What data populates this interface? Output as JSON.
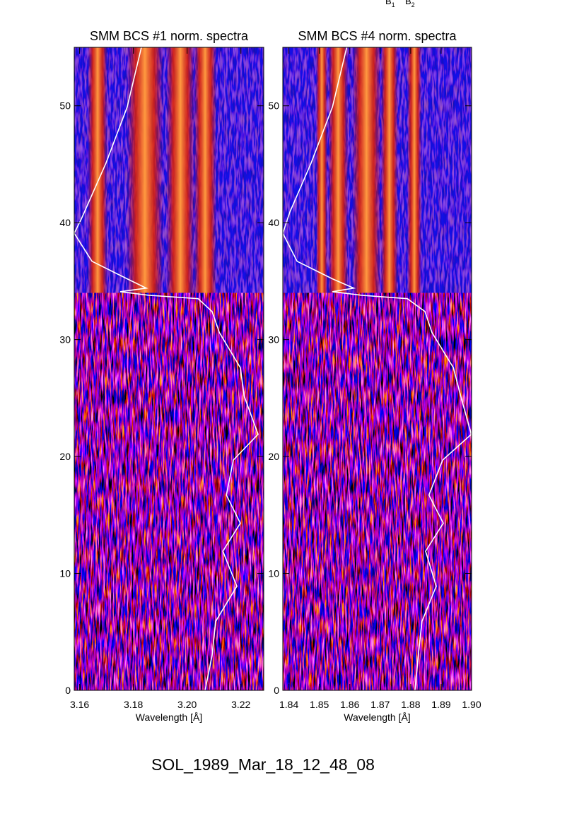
{
  "chart_data": [
    {
      "type": "spectrogram",
      "title": "SMM BCS #1 norm. spectra",
      "xlabel": "Wavelength [Å]",
      "xlim": [
        3.158,
        3.2285
      ],
      "xticks": [
        3.16,
        3.18,
        {
          "value": 3.2,
          "label": "3.20"
        },
        3.22
      ],
      "ylim": [
        0,
        55
      ],
      "yticks": [
        0,
        10,
        20,
        30,
        40,
        50
      ],
      "flare_start": 34,
      "lines": {
        "wavelengths": [
          3.1667,
          3.1843,
          3.1975,
          3.2067
        ],
        "widths": [
          0.0037,
          0.0068,
          0.0053,
          0.0042
        ]
      },
      "series": [
        {
          "color": "#ffffff",
          "x": [
            3.183,
            3.1777,
            3.1698,
            3.1606,
            3.158,
            3.1646,
            3.1777,
            3.1848,
            3.1751,
            3.1856,
            3.2041,
            3.2093,
            3.212,
            3.2198,
            3.2212,
            3.2264,
            3.2172,
            3.2146,
            3.2198,
            3.2133,
            3.2185,
            3.2106,
            3.2093,
            3.2067
          ],
          "values": [
            55,
            49.9,
            45.1,
            40.3,
            39.1,
            36.7,
            35.2,
            34.4,
            34.1,
            33.8,
            33.5,
            32.4,
            30.6,
            27.6,
            25.2,
            21.9,
            19.7,
            16.7,
            14.3,
            11.9,
            8.9,
            5.9,
            3.0,
            0
          ]
        }
      ]
    },
    {
      "type": "spectrogram",
      "title": "SMM BCS #4 norm. spectra",
      "xlabel": "Wavelength [Å]",
      "xlim": [
        1.838,
        1.9
      ],
      "xticks": [
        1.84,
        1.85,
        1.86,
        1.87,
        1.88,
        1.89,
        {
          "value": 1.9,
          "label": "1.90"
        }
      ],
      "ylim": [
        0,
        55
      ],
      "yticks": [
        0,
        10,
        20,
        30,
        40,
        50
      ],
      "flare_start": 34,
      "lines": {
        "wavelengths": [
          1.8508,
          1.8562,
          1.8655,
          1.873,
          1.8812
        ],
        "widths": [
          0.0019,
          0.0033,
          0.0047,
          0.0028,
          0.0023
        ]
      },
      "series": [
        {
          "color": "#ffffff",
          "x": [
            1.859,
            1.8543,
            1.8473,
            1.8403,
            1.838,
            1.8427,
            1.8543,
            1.8613,
            1.8543,
            1.8637,
            1.8789,
            1.8847,
            1.887,
            1.894,
            1.8964,
            1.8999,
            1.8905,
            1.886,
            1.8907,
            1.8849,
            1.8884,
            1.8837,
            1.8825,
            1.8814
          ],
          "values": [
            55,
            49.9,
            45.1,
            40.9,
            39.1,
            36.7,
            35.2,
            34.4,
            34.1,
            33.8,
            33.5,
            32.4,
            30.6,
            27.6,
            25.2,
            21.9,
            19.7,
            16.7,
            14.3,
            11.9,
            8.9,
            5.9,
            3.0,
            0
          ]
        }
      ]
    }
  ],
  "annotations": [
    {
      "text": "B",
      "sub": "1"
    },
    {
      "text": "B",
      "sub": "2"
    }
  ],
  "footer": "SOL_1989_Mar_18_12_48_08"
}
